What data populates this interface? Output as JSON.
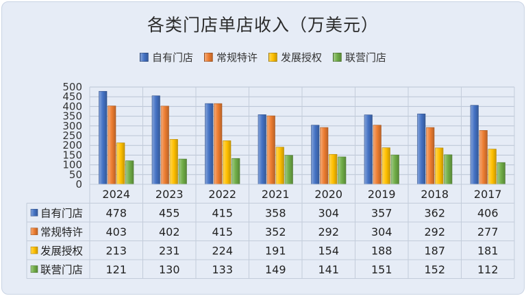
{
  "chart_data": {
    "type": "bar",
    "title": "各类门店单店收入（万美元）",
    "categories": [
      "2024",
      "2023",
      "2022",
      "2021",
      "2020",
      "2019",
      "2018",
      "2017"
    ],
    "ylim": [
      0,
      500
    ],
    "yticks": [
      0,
      50,
      100,
      150,
      200,
      250,
      300,
      350,
      400,
      450,
      500
    ],
    "grid": true,
    "legend_position": "top",
    "data_table": true,
    "series": [
      {
        "name": "自有门店",
        "color": "#4472c4",
        "values": [
          478,
          455,
          415,
          358,
          304,
          357,
          362,
          406
        ]
      },
      {
        "name": "常规特许",
        "color": "#ed7d31",
        "values": [
          403,
          402,
          415,
          352,
          292,
          304,
          292,
          277
        ]
      },
      {
        "name": "发展授权",
        "color": "#ffc000",
        "values": [
          213,
          231,
          224,
          191,
          154,
          188,
          187,
          181
        ]
      },
      {
        "name": "联营门店",
        "color": "#70ad47",
        "values": [
          121,
          130,
          133,
          149,
          141,
          151,
          152,
          112
        ]
      }
    ]
  }
}
